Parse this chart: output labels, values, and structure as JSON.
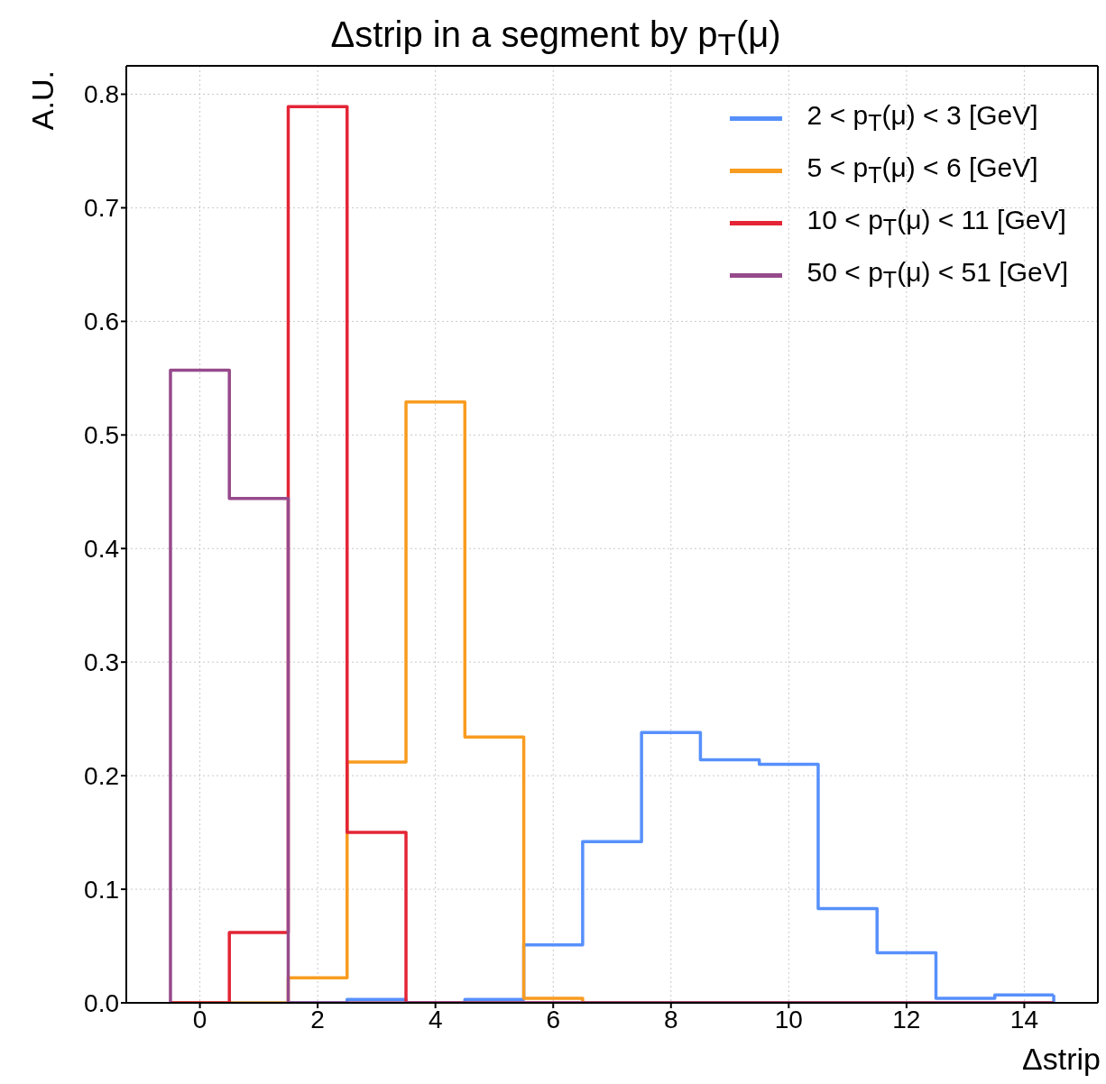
{
  "chart_data": {
    "type": "histogram",
    "title": "Δstrip in a segment by p$_{T}$(μ)",
    "xlabel": "Δstrip",
    "ylabel": "A.U.",
    "bins": [
      -0.5,
      0.5,
      1.5,
      2.5,
      3.5,
      4.5,
      5.5,
      6.5,
      7.5,
      8.5,
      9.5,
      10.5,
      11.5,
      12.5,
      13.5,
      14.5
    ],
    "series": [
      {
        "name": "2 < p$_{T}$(μ) < 3 [GeV]",
        "color": "#5790fc",
        "values": [
          0,
          0,
          0,
          0.003,
          0,
          0.003,
          0.051,
          0.142,
          0.238,
          0.214,
          0.21,
          0.083,
          0.044,
          0.004,
          0.007
        ]
      },
      {
        "name": "5 < p$_{T}$(μ) < 6 [GeV]",
        "color": "#f89c20",
        "values": [
          0,
          0,
          0.022,
          0.212,
          0.529,
          0.234,
          0.004,
          0,
          0,
          0,
          0,
          0,
          0,
          0,
          0
        ]
      },
      {
        "name": "10 < p$_{T}$(μ) < 11 [GeV]",
        "color": "#e42536",
        "values": [
          0,
          0.062,
          0.789,
          0.15,
          0,
          0,
          0,
          0,
          0,
          0,
          0,
          0,
          0,
          0,
          0
        ]
      },
      {
        "name": "50 < p$_{T}$(μ) < 51 [GeV]",
        "color": "#964a8b",
        "values": [
          0.557,
          0.444,
          0,
          0,
          0,
          0,
          0,
          0,
          0,
          0,
          0,
          0,
          0,
          0,
          0
        ]
      }
    ],
    "xlim": [
      -1.25,
      15.25
    ],
    "xticks": [
      0,
      2,
      4,
      6,
      8,
      10,
      12,
      14
    ],
    "ylim": [
      0,
      0.825
    ],
    "yticks": [
      {
        "value": 0,
        "label": "0.0"
      },
      {
        "value": 0.1,
        "label": "0.1"
      },
      {
        "value": 0.2,
        "label": "0.2"
      },
      {
        "value": 0.3,
        "label": "0.3"
      },
      {
        "value": 0.4,
        "label": "0.4"
      },
      {
        "value": 0.5,
        "label": "0.5"
      },
      {
        "value": 0.6,
        "label": "0.6"
      },
      {
        "value": 0.7,
        "label": "0.7"
      },
      {
        "value": 0.8,
        "label": "0.8"
      }
    ],
    "grid": true,
    "legend": "top right"
  }
}
